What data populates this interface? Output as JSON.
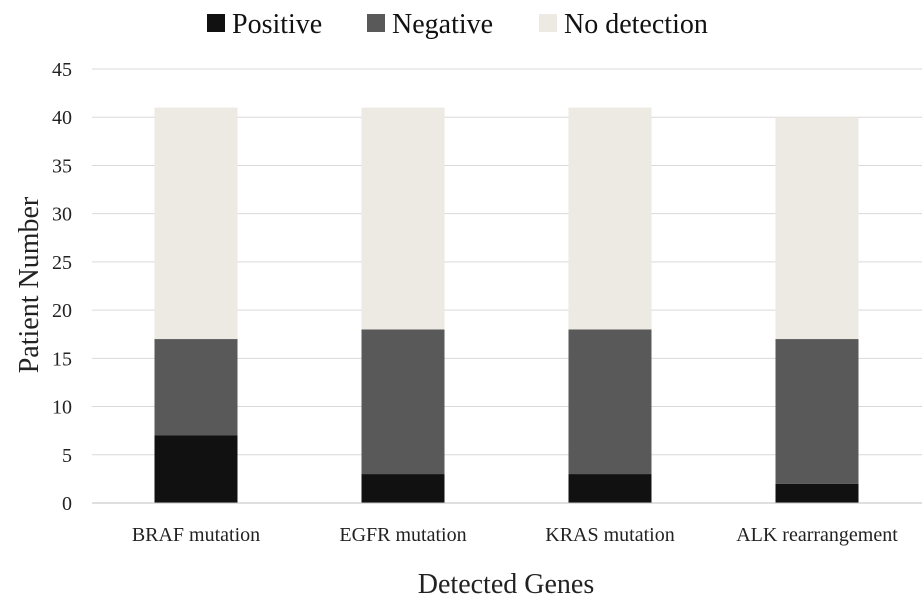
{
  "chart_data": {
    "type": "bar",
    "stacked": true,
    "categories": [
      "BRAF mutation",
      "EGFR mutation",
      "KRAS mutation",
      "ALK rearrangement"
    ],
    "series": [
      {
        "name": "Positive",
        "values": [
          7,
          3,
          3,
          2
        ],
        "color": "#111111"
      },
      {
        "name": "Negative",
        "values": [
          10,
          15,
          15,
          15
        ],
        "color": "#595959"
      },
      {
        "name": "No detection",
        "values": [
          24,
          23,
          23,
          23
        ],
        "color": "#eceae2"
      }
    ],
    "title": "",
    "xlabel": "Detected Genes",
    "ylabel": "Patient Number",
    "ylim": [
      0,
      45
    ],
    "yticks": [
      "0",
      "5",
      "10",
      "15",
      "20",
      "25",
      "30",
      "35",
      "40",
      "45"
    ],
    "grid": true,
    "legend_position": "top"
  }
}
